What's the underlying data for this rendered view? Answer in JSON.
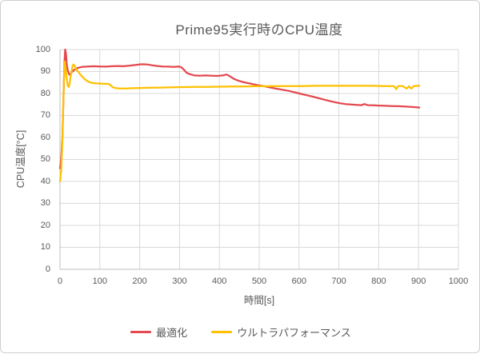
{
  "chart_data": {
    "type": "line",
    "title": "Prime95実行時のCPU温度",
    "xlabel": "時間[s]",
    "ylabel": "CPU温度[°C]",
    "xlim": [
      0,
      1000
    ],
    "ylim": [
      0,
      100
    ],
    "x_ticks": [
      0,
      100,
      200,
      300,
      400,
      500,
      600,
      700,
      800,
      900,
      1000
    ],
    "y_ticks": [
      0,
      10,
      20,
      30,
      40,
      50,
      60,
      70,
      80,
      90,
      100
    ],
    "grid": true,
    "legend_position": "bottom",
    "colors": {
      "grid": "#d9d9d9",
      "axis": "#bfbfbf",
      "text": "#595959",
      "background": "#ffffff"
    },
    "series": [
      {
        "name": "最適化",
        "color": "#e4494f",
        "points": [
          [
            0,
            46
          ],
          [
            3,
            50
          ],
          [
            6,
            60
          ],
          [
            9,
            80
          ],
          [
            11,
            94
          ],
          [
            13,
            100
          ],
          [
            15,
            98
          ],
          [
            17,
            93
          ],
          [
            20,
            90
          ],
          [
            23,
            88.6
          ],
          [
            26,
            88.9
          ],
          [
            30,
            89.8
          ],
          [
            36,
            90.8
          ],
          [
            44,
            91.6
          ],
          [
            55,
            92.1
          ],
          [
            70,
            92.3
          ],
          [
            85,
            92.4
          ],
          [
            100,
            92.3
          ],
          [
            115,
            92.2
          ],
          [
            130,
            92.4
          ],
          [
            145,
            92.5
          ],
          [
            160,
            92.4
          ],
          [
            175,
            92.7
          ],
          [
            190,
            93.0
          ],
          [
            205,
            93.3
          ],
          [
            220,
            93.2
          ],
          [
            232,
            92.8
          ],
          [
            245,
            92.5
          ],
          [
            258,
            92.3
          ],
          [
            272,
            92.2
          ],
          [
            286,
            92.1
          ],
          [
            298,
            92.3
          ],
          [
            305,
            91.9
          ],
          [
            312,
            90.6
          ],
          [
            318,
            89.4
          ],
          [
            326,
            88.8
          ],
          [
            336,
            88.3
          ],
          [
            350,
            88.1
          ],
          [
            365,
            88.2
          ],
          [
            380,
            88.1
          ],
          [
            395,
            88.0
          ],
          [
            408,
            88.2
          ],
          [
            418,
            88.6
          ],
          [
            426,
            87.9
          ],
          [
            436,
            86.7
          ],
          [
            448,
            85.8
          ],
          [
            462,
            85.1
          ],
          [
            478,
            84.5
          ],
          [
            494,
            83.9
          ],
          [
            510,
            83.4
          ],
          [
            526,
            82.8
          ],
          [
            542,
            82.2
          ],
          [
            558,
            81.7
          ],
          [
            574,
            81.2
          ],
          [
            590,
            80.5
          ],
          [
            606,
            79.8
          ],
          [
            622,
            79.1
          ],
          [
            638,
            78.4
          ],
          [
            655,
            77.6
          ],
          [
            672,
            76.8
          ],
          [
            688,
            76.1
          ],
          [
            702,
            75.6
          ],
          [
            716,
            75.2
          ],
          [
            730,
            75.0
          ],
          [
            744,
            74.8
          ],
          [
            757,
            74.7
          ],
          [
            764,
            75.2
          ],
          [
            772,
            74.7
          ],
          [
            786,
            74.6
          ],
          [
            800,
            74.5
          ],
          [
            816,
            74.4
          ],
          [
            832,
            74.3
          ],
          [
            848,
            74.2
          ],
          [
            864,
            74.1
          ],
          [
            880,
            73.9
          ],
          [
            892,
            73.8
          ],
          [
            902,
            73.6
          ]
        ]
      },
      {
        "name": "ウルトラパフォーマンス",
        "color": "#ffc000",
        "points": [
          [
            0,
            40
          ],
          [
            3,
            45
          ],
          [
            6,
            58
          ],
          [
            8,
            74
          ],
          [
            10,
            88
          ],
          [
            12,
            94.5
          ],
          [
            14,
            92
          ],
          [
            16,
            88
          ],
          [
            18,
            85
          ],
          [
            20,
            83.3
          ],
          [
            22,
            83.0
          ],
          [
            24,
            84.5
          ],
          [
            27,
            88
          ],
          [
            30,
            91
          ],
          [
            32,
            92.8
          ],
          [
            34,
            93.2
          ],
          [
            37,
            92.5
          ],
          [
            40,
            91.3
          ],
          [
            44,
            90.3
          ],
          [
            50,
            88.9
          ],
          [
            56,
            87.6
          ],
          [
            62,
            86.5
          ],
          [
            68,
            85.7
          ],
          [
            75,
            85.1
          ],
          [
            82,
            84.8
          ],
          [
            90,
            84.6
          ],
          [
            100,
            84.5
          ],
          [
            110,
            84.4
          ],
          [
            118,
            84.4
          ],
          [
            124,
            84.2
          ],
          [
            130,
            83.2
          ],
          [
            136,
            82.6
          ],
          [
            142,
            82.4
          ],
          [
            150,
            82.3
          ],
          [
            165,
            82.3
          ],
          [
            180,
            82.4
          ],
          [
            200,
            82.5
          ],
          [
            225,
            82.6
          ],
          [
            252,
            82.7
          ],
          [
            280,
            82.8
          ],
          [
            310,
            82.9
          ],
          [
            340,
            83.0
          ],
          [
            370,
            83.0
          ],
          [
            400,
            83.1
          ],
          [
            430,
            83.2
          ],
          [
            460,
            83.2
          ],
          [
            490,
            83.3
          ],
          [
            520,
            83.3
          ],
          [
            550,
            83.4
          ],
          [
            580,
            83.4
          ],
          [
            610,
            83.4
          ],
          [
            640,
            83.5
          ],
          [
            670,
            83.5
          ],
          [
            700,
            83.5
          ],
          [
            730,
            83.5
          ],
          [
            760,
            83.5
          ],
          [
            790,
            83.5
          ],
          [
            810,
            83.4
          ],
          [
            838,
            83.4
          ],
          [
            844,
            82.0
          ],
          [
            849,
            83.4
          ],
          [
            860,
            83.4
          ],
          [
            870,
            82.2
          ],
          [
            876,
            83.3
          ],
          [
            882,
            82.2
          ],
          [
            888,
            83.4
          ],
          [
            896,
            83.5
          ],
          [
            902,
            83.5
          ]
        ]
      }
    ]
  }
}
